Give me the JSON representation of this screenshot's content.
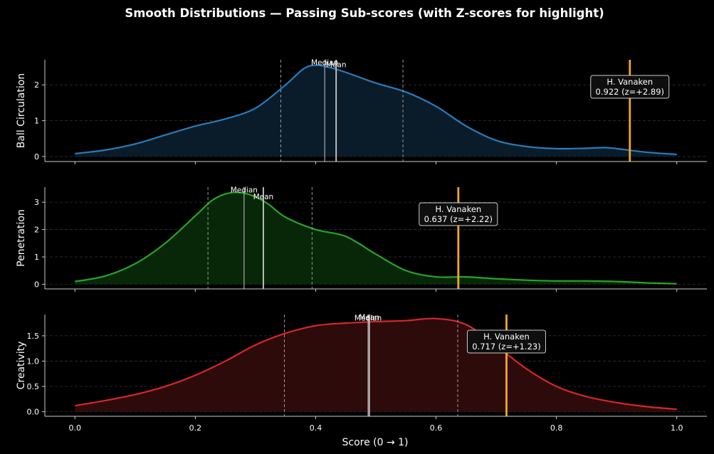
{
  "figure": {
    "title": "Smooth Distributions — Passing Sub-scores (with Z-scores for highlight)",
    "xlabel": "Score (0 → 1)",
    "background": "#000000",
    "highlight_color": "#f5a623"
  },
  "chart_data": [
    {
      "type": "area",
      "ylabel": "Ball Circulation",
      "color": "#2b7bb9",
      "fill": "#0a1c2a",
      "xlim": [
        -0.05,
        1.05
      ],
      "ylim": [
        -0.14,
        2.7
      ],
      "yticks": [
        0,
        1,
        2
      ],
      "xticks": [
        0.0,
        0.2,
        0.4,
        0.6,
        0.8,
        1.0
      ],
      "x": [
        0.0,
        0.05,
        0.1,
        0.15,
        0.2,
        0.25,
        0.3,
        0.35,
        0.38,
        0.4,
        0.42,
        0.45,
        0.5,
        0.55,
        0.6,
        0.65,
        0.7,
        0.75,
        0.8,
        0.85,
        0.88,
        0.9,
        0.95,
        1.0
      ],
      "y": [
        0.08,
        0.18,
        0.35,
        0.6,
        0.85,
        1.05,
        1.35,
        2.0,
        2.45,
        2.55,
        2.5,
        2.35,
        2.05,
        1.8,
        1.4,
        0.85,
        0.45,
        0.28,
        0.22,
        0.23,
        0.25,
        0.22,
        0.12,
        0.06
      ],
      "q1": 0.342,
      "median": 0.415,
      "mean": 0.434,
      "q3": 0.545,
      "median_label": "Median",
      "mean_label": "Mean",
      "player": {
        "name": "H. Vanaken",
        "value": 0.922,
        "z": "+2.89",
        "stat": "0.922 (z=+2.89)"
      }
    },
    {
      "type": "area",
      "ylabel": "Penetration",
      "color": "#2ca02c",
      "fill": "#082708",
      "xlim": [
        -0.05,
        1.05
      ],
      "ylim": [
        -0.17,
        3.55
      ],
      "yticks": [
        0,
        1,
        2,
        3
      ],
      "xticks": [
        0.0,
        0.2,
        0.4,
        0.6,
        0.8,
        1.0
      ],
      "x": [
        0.0,
        0.05,
        0.1,
        0.15,
        0.2,
        0.23,
        0.26,
        0.29,
        0.32,
        0.35,
        0.4,
        0.45,
        0.5,
        0.55,
        0.6,
        0.65,
        0.7,
        0.75,
        0.8,
        0.85,
        0.9,
        0.95,
        1.0
      ],
      "y": [
        0.1,
        0.3,
        0.75,
        1.5,
        2.5,
        3.1,
        3.35,
        3.28,
        2.95,
        2.45,
        2.0,
        1.75,
        1.1,
        0.5,
        0.27,
        0.27,
        0.2,
        0.15,
        0.12,
        0.12,
        0.1,
        0.05,
        0.02
      ],
      "q1": 0.221,
      "median": 0.281,
      "mean": 0.313,
      "q3": 0.394,
      "median_label": "Median",
      "mean_label": "Mean",
      "player": {
        "name": "H. Vanaken",
        "value": 0.637,
        "z": "+2.22",
        "stat": "0.637 (z=+2.22)"
      }
    },
    {
      "type": "area",
      "ylabel": "Creativity",
      "color": "#d62728",
      "fill": "#2e0b0b",
      "xlim": [
        -0.05,
        1.05
      ],
      "ylim": [
        -0.09,
        1.92
      ],
      "yticks": [
        0.0,
        0.5,
        1.0,
        1.5
      ],
      "ytick_labels": [
        "0.0",
        "0.5",
        "1.0",
        "1.5"
      ],
      "xticks": [
        0.0,
        0.2,
        0.4,
        0.6,
        0.8,
        1.0
      ],
      "xtick_labels": [
        "0.0",
        "0.2",
        "0.4",
        "0.6",
        "0.8",
        "1.0"
      ],
      "x": [
        0.0,
        0.05,
        0.1,
        0.15,
        0.2,
        0.25,
        0.3,
        0.35,
        0.4,
        0.45,
        0.5,
        0.55,
        0.6,
        0.65,
        0.7,
        0.75,
        0.8,
        0.85,
        0.9,
        0.95,
        1.0
      ],
      "y": [
        0.12,
        0.22,
        0.34,
        0.5,
        0.72,
        1.0,
        1.32,
        1.55,
        1.7,
        1.75,
        1.78,
        1.8,
        1.84,
        1.72,
        1.3,
        0.85,
        0.5,
        0.3,
        0.18,
        0.1,
        0.05
      ],
      "q1": 0.348,
      "median": 0.487,
      "mean": 0.489,
      "q3": 0.636,
      "median_label": "Median",
      "mean_label": "Mean",
      "player": {
        "name": "H. Vanaken",
        "value": 0.717,
        "z": "+1.23",
        "stat": "0.717 (z=+1.23)"
      }
    }
  ]
}
